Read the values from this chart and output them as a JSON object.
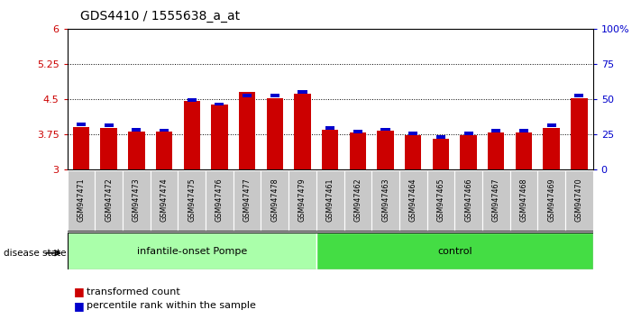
{
  "title": "GDS4410 / 1555638_a_at",
  "samples": [
    "GSM947471",
    "GSM947472",
    "GSM947473",
    "GSM947474",
    "GSM947475",
    "GSM947476",
    "GSM947477",
    "GSM947478",
    "GSM947479",
    "GSM947461",
    "GSM947462",
    "GSM947463",
    "GSM947464",
    "GSM947465",
    "GSM947466",
    "GSM947467",
    "GSM947468",
    "GSM947469",
    "GSM947470"
  ],
  "red_values": [
    3.9,
    3.88,
    3.81,
    3.8,
    4.45,
    4.38,
    4.65,
    4.52,
    4.62,
    3.84,
    3.79,
    3.82,
    3.73,
    3.65,
    3.73,
    3.79,
    3.79,
    3.88,
    4.52
  ],
  "blue_values": [
    3.95,
    3.93,
    3.84,
    3.83,
    4.47,
    4.39,
    4.57,
    4.57,
    4.65,
    3.88,
    3.81,
    3.85,
    3.77,
    3.68,
    3.77,
    3.82,
    3.82,
    3.93,
    4.58
  ],
  "groups": [
    "infantile-onset Pompe",
    "infantile-onset Pompe",
    "infantile-onset Pompe",
    "infantile-onset Pompe",
    "infantile-onset Pompe",
    "infantile-onset Pompe",
    "infantile-onset Pompe",
    "infantile-onset Pompe",
    "infantile-onset Pompe",
    "control",
    "control",
    "control",
    "control",
    "control",
    "control",
    "control",
    "control",
    "control",
    "control"
  ],
  "group_color_pompe": "#AAFFAA",
  "group_color_control": "#44DD44",
  "ymin": 3.0,
  "ymax": 6.0,
  "yticks": [
    3.0,
    3.75,
    4.5,
    5.25,
    6.0
  ],
  "ytick_labels": [
    "3",
    "3.75",
    "4.5",
    "5.25",
    "6"
  ],
  "hlines": [
    3.75,
    4.5,
    5.25
  ],
  "bar_color": "#CC0000",
  "blue_color": "#0000CC",
  "bg_color": "#FFFFFF",
  "left_label_color": "#CC0000",
  "right_label_color": "#0000CC",
  "sample_box_color": "#C8C8C8",
  "right_tick_pcts": [
    0,
    25,
    50,
    75,
    100
  ],
  "right_tick_labels": [
    "0",
    "25",
    "50",
    "75",
    "100%"
  ]
}
